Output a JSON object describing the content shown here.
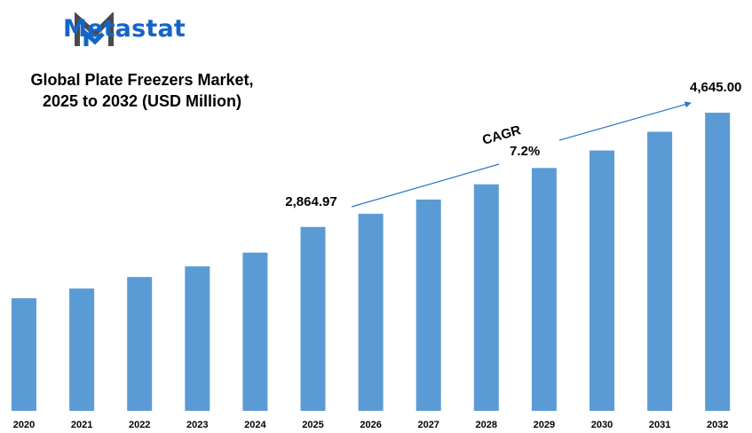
{
  "brand": {
    "name": "Metastat",
    "color": "#1565c8",
    "icon": "metastat-m-logo"
  },
  "chart_data": {
    "type": "bar",
    "title": "Global Plate Freezers Market, 2025 to 2032 (USD Million)",
    "title_lines": [
      "Global Plate Freezers Market,",
      "2025 to 2032 (USD Million)"
    ],
    "categories": [
      "2020",
      "2021",
      "2022",
      "2023",
      "2024",
      "2025",
      "2026",
      "2027",
      "2028",
      "2029",
      "2030",
      "2031",
      "2032"
    ],
    "values": [
      1755,
      1905,
      2085,
      2250,
      2465,
      2864.97,
      3071,
      3292,
      3529,
      3784,
      4056,
      4348,
      4645
    ],
    "data_labels": [
      {
        "category": "2025",
        "text": "2,864.97"
      },
      {
        "category": "2032",
        "text": "4,645.00"
      }
    ],
    "annotation": {
      "label": "CAGR",
      "value": "7.2%"
    },
    "bar_color": "#5b9bd5",
    "xlabel": "",
    "ylabel": "",
    "ylim": [
      0,
      4645
    ],
    "grid": false,
    "legend": "none"
  }
}
